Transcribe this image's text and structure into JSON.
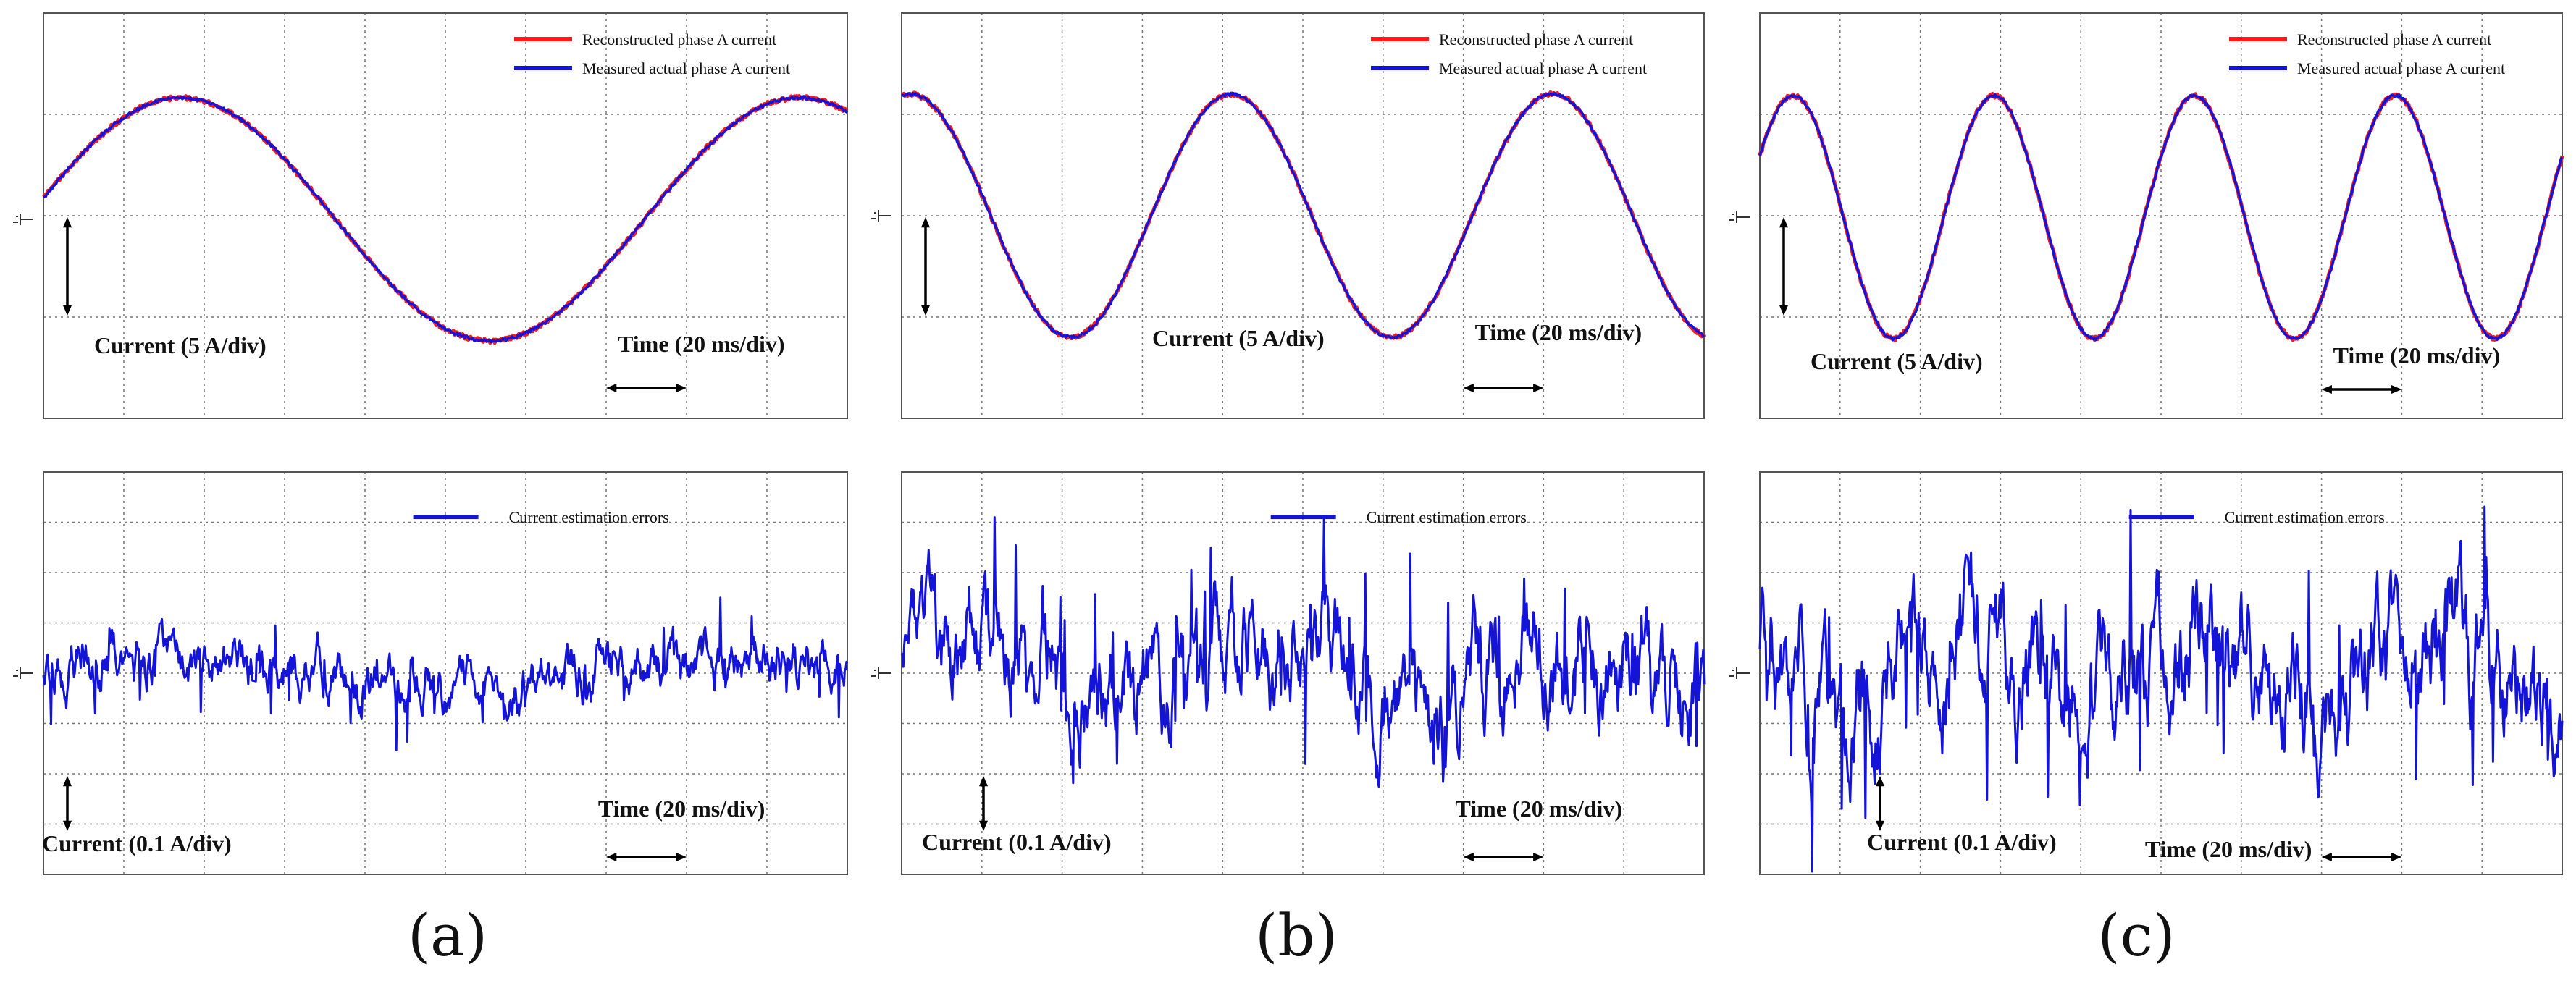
{
  "panels": [
    {
      "label": "(a)",
      "top": {
        "legend": [
          "Reconstructed phase A current",
          "Measured actual phase A current"
        ],
        "y_scale_label": "Current (5 A/div)",
        "x_scale_label": "Time (20 ms/div)"
      },
      "bottom": {
        "legend": [
          "Current estimation errors"
        ],
        "y_scale_label": "Current (0.1 A/div)",
        "x_scale_label": "Time (20 ms/div)"
      }
    },
    {
      "label": "(b)",
      "top": {
        "legend": [
          "Reconstructed phase A current",
          "Measured actual phase A current"
        ],
        "y_scale_label": "Current (5 A/div)",
        "x_scale_label": "Time (20 ms/div)"
      },
      "bottom": {
        "legend": [
          "Current estimation errors"
        ],
        "y_scale_label": "Current (0.1 A/div)",
        "x_scale_label": "Time (20 ms/div)"
      }
    },
    {
      "label": "(c)",
      "top": {
        "legend": [
          "Reconstructed phase A current",
          "Measured actual phase A current"
        ],
        "y_scale_label": "Current (5 A/div)",
        "x_scale_label": "Time (20 ms/div)"
      },
      "bottom": {
        "legend": [
          "Current estimation errors"
        ],
        "y_scale_label": "Current (0.1 A/div)",
        "x_scale_label": "Time (20 ms/div)"
      }
    }
  ],
  "colors": {
    "reconstructed": "#ff1a1a",
    "measured": "#1414d8",
    "error": "#1414d8",
    "grid": "#777777",
    "frame": "#555555",
    "text": "#111111"
  },
  "chart_data": [
    {
      "type": "line",
      "panel": "(a)",
      "plot": "phase A current",
      "x_divisions": 10,
      "y_divisions": 4,
      "xlabel": "Time (20 ms/div)",
      "ylabel": "Current (5 A/div)",
      "series": [
        {
          "name": "Reconstructed phase A current",
          "waveform": "sine",
          "amplitude_div": 1.2,
          "cycles_on_screen": 1.3,
          "phase_start_deg": 10
        },
        {
          "name": "Measured actual phase A current",
          "waveform": "sine",
          "amplitude_div": 1.2,
          "cycles_on_screen": 1.3,
          "phase_start_deg": 10
        }
      ]
    },
    {
      "type": "line",
      "panel": "(a)",
      "plot": "estimation error",
      "x_divisions": 10,
      "y_divisions": 8,
      "xlabel": "Time (20 ms/div)",
      "ylabel": "Current (0.1 A/div)",
      "series": [
        {
          "name": "Current estimation errors",
          "waveform": "noise",
          "mean_div": 0.0,
          "spread_div": 1.2
        }
      ]
    },
    {
      "type": "line",
      "panel": "(b)",
      "plot": "phase A current",
      "x_divisions": 10,
      "y_divisions": 4,
      "xlabel": "Time (20 ms/div)",
      "ylabel": "Current (5 A/div)",
      "series": [
        {
          "name": "Reconstructed phase A current",
          "waveform": "sine",
          "amplitude_div": 1.2,
          "cycles_on_screen": 2.5,
          "phase_start_deg": 80
        },
        {
          "name": "Measured actual phase A current",
          "waveform": "sine",
          "amplitude_div": 1.2,
          "cycles_on_screen": 2.5,
          "phase_start_deg": 80
        }
      ]
    },
    {
      "type": "line",
      "panel": "(b)",
      "plot": "estimation error",
      "x_divisions": 10,
      "y_divisions": 8,
      "xlabel": "Time (20 ms/div)",
      "ylabel": "Current (0.1 A/div)",
      "series": [
        {
          "name": "Current estimation errors",
          "waveform": "noise",
          "mean_div": 0.0,
          "spread_div": 2.4
        }
      ]
    },
    {
      "type": "line",
      "panel": "(c)",
      "plot": "phase A current",
      "x_divisions": 10,
      "y_divisions": 4,
      "xlabel": "Time (20 ms/div)",
      "ylabel": "Current (5 A/div)",
      "series": [
        {
          "name": "Reconstructed phase A current",
          "waveform": "sine",
          "amplitude_div": 1.2,
          "cycles_on_screen": 4.0,
          "phase_start_deg": 30
        },
        {
          "name": "Measured actual phase A current",
          "waveform": "sine",
          "amplitude_div": 1.2,
          "cycles_on_screen": 4.0,
          "phase_start_deg": 30
        }
      ]
    },
    {
      "type": "line",
      "panel": "(c)",
      "plot": "estimation error",
      "x_divisions": 10,
      "y_divisions": 8,
      "xlabel": "Time (20 ms/div)",
      "ylabel": "Current (0.1 A/div)",
      "series": [
        {
          "name": "Current estimation errors",
          "waveform": "noise",
          "mean_div": 0.0,
          "spread_div": 2.8
        }
      ]
    }
  ]
}
